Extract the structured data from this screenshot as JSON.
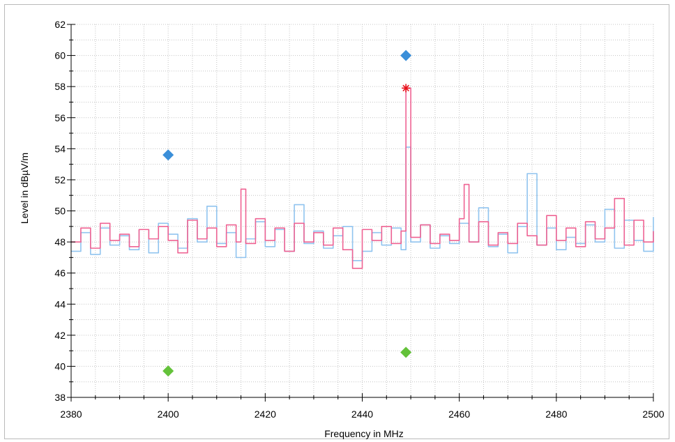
{
  "chart_data": {
    "type": "line",
    "xlabel": "Frequency in MHz",
    "ylabel": "Level in dBµV/m",
    "xlim": [
      2380,
      2500
    ],
    "ylim": [
      38,
      62
    ],
    "x_ticks": [
      2380,
      2400,
      2420,
      2440,
      2460,
      2480,
      2500
    ],
    "y_ticks": [
      38,
      40,
      42,
      44,
      46,
      48,
      50,
      52,
      54,
      56,
      58,
      60,
      62
    ],
    "grid": true,
    "series": [
      {
        "color": "#90c4ef",
        "x": [
          2380,
          2382,
          2384,
          2386,
          2388,
          2390,
          2392,
          2394,
          2396,
          2398,
          2400,
          2402,
          2404,
          2406,
          2408,
          2410,
          2412,
          2414,
          2416,
          2418,
          2420,
          2422,
          2424,
          2426,
          2428,
          2430,
          2432,
          2434,
          2436,
          2438,
          2440,
          2442,
          2444,
          2446,
          2448,
          2449,
          2450,
          2452,
          2454,
          2456,
          2458,
          2460,
          2462,
          2464,
          2466,
          2468,
          2470,
          2472,
          2474,
          2476,
          2478,
          2480,
          2482,
          2484,
          2486,
          2488,
          2490,
          2492,
          2494,
          2496,
          2498,
          2500
        ],
        "values": [
          47.4,
          48.6,
          47.2,
          48.9,
          47.8,
          48.4,
          47.5,
          48.8,
          47.3,
          49.2,
          48.5,
          47.6,
          49.5,
          48.0,
          50.3,
          47.9,
          48.6,
          47.0,
          48.2,
          49.3,
          47.7,
          48.8,
          47.4,
          50.4,
          47.9,
          48.7,
          47.6,
          48.4,
          49.0,
          46.8,
          47.4,
          48.6,
          47.8,
          48.9,
          47.5,
          54.1,
          48.0,
          49.1,
          47.6,
          48.4,
          47.9,
          49.2,
          48.0,
          50.2,
          47.7,
          48.5,
          47.3,
          49.0,
          52.4,
          47.8,
          48.9,
          47.5,
          48.3,
          47.9,
          49.1,
          48.0,
          50.1,
          47.6,
          49.4,
          48.1,
          47.4,
          49.6
        ]
      },
      {
        "color": "#ef6393",
        "x": [
          2380,
          2382,
          2384,
          2386,
          2388,
          2390,
          2392,
          2394,
          2396,
          2398,
          2400,
          2402,
          2404,
          2406,
          2408,
          2410,
          2412,
          2414,
          2415,
          2416,
          2418,
          2420,
          2422,
          2424,
          2426,
          2428,
          2430,
          2432,
          2434,
          2436,
          2438,
          2440,
          2442,
          2444,
          2446,
          2448,
          2449,
          2450,
          2452,
          2454,
          2456,
          2458,
          2460,
          2461,
          2462,
          2464,
          2466,
          2468,
          2470,
          2472,
          2474,
          2476,
          2478,
          2480,
          2482,
          2484,
          2486,
          2488,
          2490,
          2492,
          2494,
          2496,
          2498,
          2500
        ],
        "values": [
          48.0,
          48.9,
          47.6,
          49.2,
          48.1,
          48.5,
          47.7,
          48.8,
          48.2,
          49.0,
          48.1,
          47.3,
          49.4,
          48.2,
          48.9,
          47.7,
          49.1,
          48.0,
          51.4,
          47.9,
          49.5,
          48.1,
          48.9,
          47.4,
          49.2,
          48.0,
          48.6,
          47.8,
          48.9,
          47.5,
          46.3,
          48.8,
          48.1,
          49.0,
          47.9,
          48.7,
          57.9,
          48.3,
          49.1,
          47.9,
          48.5,
          48.1,
          49.5,
          51.7,
          48.0,
          49.3,
          47.8,
          48.6,
          47.9,
          49.2,
          48.4,
          47.8,
          49.7,
          48.1,
          48.9,
          47.7,
          49.3,
          48.2,
          48.9,
          50.8,
          47.8,
          49.4,
          48.0,
          48.7
        ]
      }
    ],
    "markers": [
      {
        "shape": "diamond",
        "color": "#3b8fd9",
        "x": 2400,
        "y": 53.6
      },
      {
        "shape": "diamond",
        "color": "#3b8fd9",
        "x": 2449,
        "y": 60.0
      },
      {
        "shape": "diamond",
        "color": "#64c23a",
        "x": 2400,
        "y": 39.7
      },
      {
        "shape": "diamond",
        "color": "#64c23a",
        "x": 2449,
        "y": 40.9
      },
      {
        "shape": "asterisk",
        "color": "#e8121c",
        "x": 2449,
        "y": 57.9
      }
    ]
  }
}
